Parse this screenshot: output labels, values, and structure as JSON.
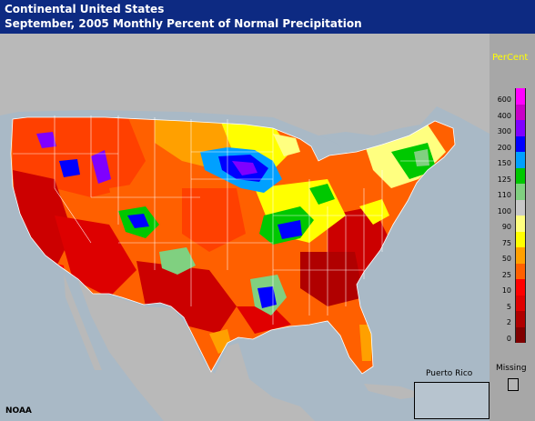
{
  "header": {
    "title": "Continental United States",
    "subtitle": "September, 2005 Monthly Percent of Normal Precipitation"
  },
  "map": {
    "credit": "NOAA",
    "inset_label": "Puerto Rico"
  },
  "legend": {
    "title": "PerCent",
    "missing_label": "Missing",
    "missing_color": "#b5b5b5",
    "bins": [
      {
        "label": "600",
        "color": "#ff00ff"
      },
      {
        "label": "400",
        "color": "#c800c8"
      },
      {
        "label": "300",
        "color": "#7f00ff"
      },
      {
        "label": "200",
        "color": "#0000ff"
      },
      {
        "label": "150",
        "color": "#00a0ff"
      },
      {
        "label": "125",
        "color": "#00c800"
      },
      {
        "label": "110",
        "color": "#80d080"
      },
      {
        "label": "100",
        "color": "#c8c8c8"
      },
      {
        "label": "90",
        "color": "#ffff80"
      },
      {
        "label": "75",
        "color": "#ffff00"
      },
      {
        "label": "50",
        "color": "#ffa000"
      },
      {
        "label": "25",
        "color": "#ff6000"
      },
      {
        "label": "10",
        "color": "#ff0000"
      },
      {
        "label": "5",
        "color": "#e00000"
      },
      {
        "label": "2",
        "color": "#b00000"
      },
      {
        "label": "0",
        "color": "#800000"
      }
    ]
  }
}
